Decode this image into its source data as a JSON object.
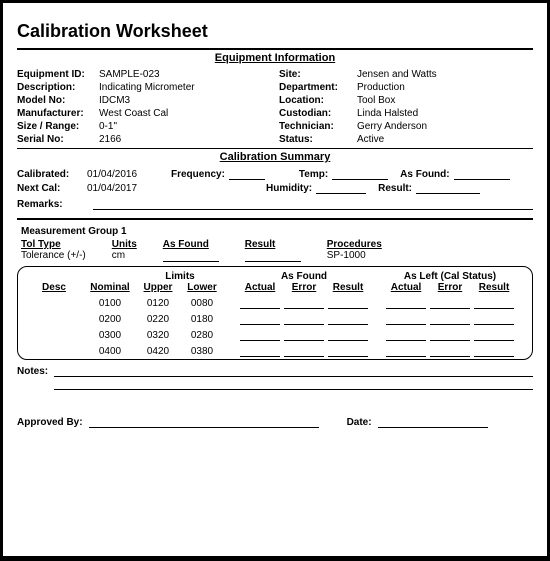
{
  "title": "Calibration Worksheet",
  "sections": {
    "equipment_info": "Equipment Information",
    "calibration_summary": "Calibration Summary"
  },
  "equipment": {
    "left": {
      "equipment_id": {
        "label": "Equipment ID:",
        "value": "SAMPLE-023"
      },
      "description": {
        "label": "Description:",
        "value": "Indicating Micrometer"
      },
      "model_no": {
        "label": "Model No:",
        "value": "IDCM3"
      },
      "manufacturer": {
        "label": "Manufacturer:",
        "value": "West Coast Cal"
      },
      "size_range": {
        "label": "Size / Range:",
        "value": "0-1\""
      },
      "serial_no": {
        "label": "Serial No:",
        "value": "2166"
      }
    },
    "right": {
      "site": {
        "label": "Site:",
        "value": "Jensen and Watts"
      },
      "department": {
        "label": "Department:",
        "value": "Production"
      },
      "location": {
        "label": "Location:",
        "value": "Tool Box"
      },
      "custodian": {
        "label": "Custodian:",
        "value": "Linda Halsted"
      },
      "technician": {
        "label": "Technician:",
        "value": "Gerry Anderson"
      },
      "status": {
        "label": "Status:",
        "value": "Active"
      }
    }
  },
  "calibration": {
    "calibrated": {
      "label": "Calibrated:",
      "value": "01/04/2016"
    },
    "next_cal": {
      "label": "Next Cal:",
      "value": "01/04/2017"
    },
    "frequency": {
      "label": "Frequency:"
    },
    "temp": {
      "label": "Temp:"
    },
    "humidity": {
      "label": "Humidity:"
    },
    "as_found": {
      "label": "As Found:"
    },
    "result": {
      "label": "Result:"
    },
    "remarks": {
      "label": "Remarks:"
    }
  },
  "measurement_group": {
    "title": "Measurement Group 1",
    "tol_type": {
      "header": "Tol Type",
      "value": "Tolerance (+/-)"
    },
    "units": {
      "header": "Units",
      "value": "cm"
    },
    "as_found_hdr": "As Found",
    "result_hdr": "Result",
    "procedures": {
      "header": "Procedures",
      "value": "SP-1000"
    },
    "columns": {
      "desc": "Desc",
      "nominal": "Nominal",
      "limits": "Limits",
      "upper": "Upper",
      "lower": "Lower",
      "as_found_group": "As Found",
      "actual": "Actual",
      "error": "Error",
      "result": "Result",
      "as_left_group": "As Left (Cal Status)"
    },
    "rows": [
      {
        "desc": "",
        "nominal": "0100",
        "upper": "0120",
        "lower": "0080"
      },
      {
        "desc": "",
        "nominal": "0200",
        "upper": "0220",
        "lower": "0180"
      },
      {
        "desc": "",
        "nominal": "0300",
        "upper": "0320",
        "lower": "0280"
      },
      {
        "desc": "",
        "nominal": "0400",
        "upper": "0420",
        "lower": "0380"
      }
    ],
    "notes_label": "Notes:"
  },
  "footer": {
    "approved_by": "Approved By:",
    "date": "Date:"
  }
}
